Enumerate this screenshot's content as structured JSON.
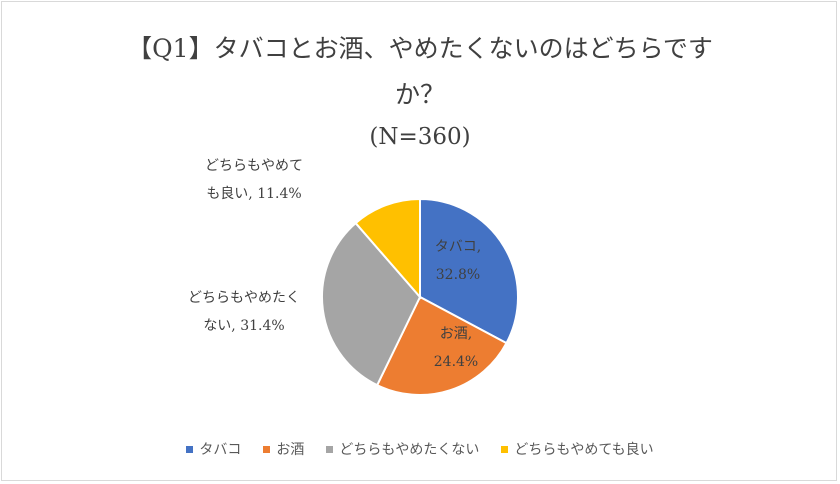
{
  "chart_data": {
    "type": "pie",
    "title_line1": "【Q1】タバコとお酒、やめたくないのはどちらです",
    "title_line2": "か？",
    "subtitle": "(N=360)",
    "categories": [
      "タバコ",
      "お酒",
      "どちらもやめたくない",
      "どちらもやめても良い"
    ],
    "values": [
      32.8,
      24.4,
      31.4,
      11.4
    ],
    "data_labels": [
      [
        "タバコ,",
        "32.8%"
      ],
      [
        "お酒,",
        "24.4%"
      ],
      [
        "どちらもやめたく",
        "ない, 31.4%"
      ],
      [
        "どちらもやめて",
        "も良い, 11.4%"
      ]
    ],
    "colors": [
      "#4472C4",
      "#ED7D31",
      "#A5A5A5",
      "#FFC000"
    ],
    "legend_position": "bottom"
  }
}
